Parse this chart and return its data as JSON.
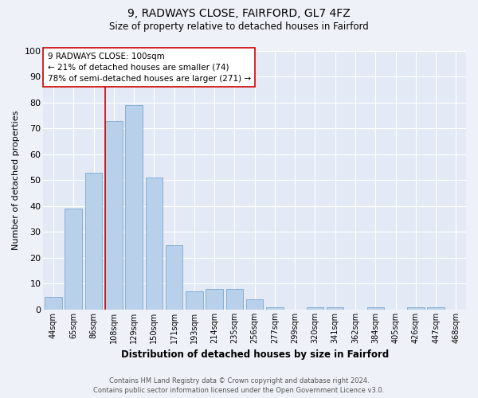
{
  "title1": "9, RADWAYS CLOSE, FAIRFORD, GL7 4FZ",
  "title2": "Size of property relative to detached houses in Fairford",
  "xlabel": "Distribution of detached houses by size in Fairford",
  "ylabel": "Number of detached properties",
  "categories": [
    "44sqm",
    "65sqm",
    "86sqm",
    "108sqm",
    "129sqm",
    "150sqm",
    "171sqm",
    "193sqm",
    "214sqm",
    "235sqm",
    "256sqm",
    "277sqm",
    "299sqm",
    "320sqm",
    "341sqm",
    "362sqm",
    "384sqm",
    "405sqm",
    "426sqm",
    "447sqm",
    "468sqm"
  ],
  "values": [
    5,
    39,
    53,
    73,
    79,
    51,
    25,
    7,
    8,
    8,
    4,
    1,
    0,
    1,
    1,
    0,
    1,
    0,
    1,
    1,
    0
  ],
  "bar_color": "#b8d0ea",
  "bar_edge_color": "#6b9ec8",
  "highlight_index": 3,
  "highlight_color": "#cc0000",
  "ylim": [
    0,
    100
  ],
  "yticks": [
    0,
    10,
    20,
    30,
    40,
    50,
    60,
    70,
    80,
    90,
    100
  ],
  "annotation_box_text": "9 RADWAYS CLOSE: 100sqm\n← 21% of detached houses are smaller (74)\n78% of semi-detached houses are larger (271) →",
  "footer_line1": "Contains HM Land Registry data © Crown copyright and database right 2024.",
  "footer_line2": "Contains public sector information licensed under the Open Government Licence v3.0.",
  "background_color": "#eef2f8",
  "plot_bg_color": "#e4eaf5",
  "grid_color": "#ffffff",
  "figsize": [
    6.0,
    5.0
  ],
  "dpi": 100
}
